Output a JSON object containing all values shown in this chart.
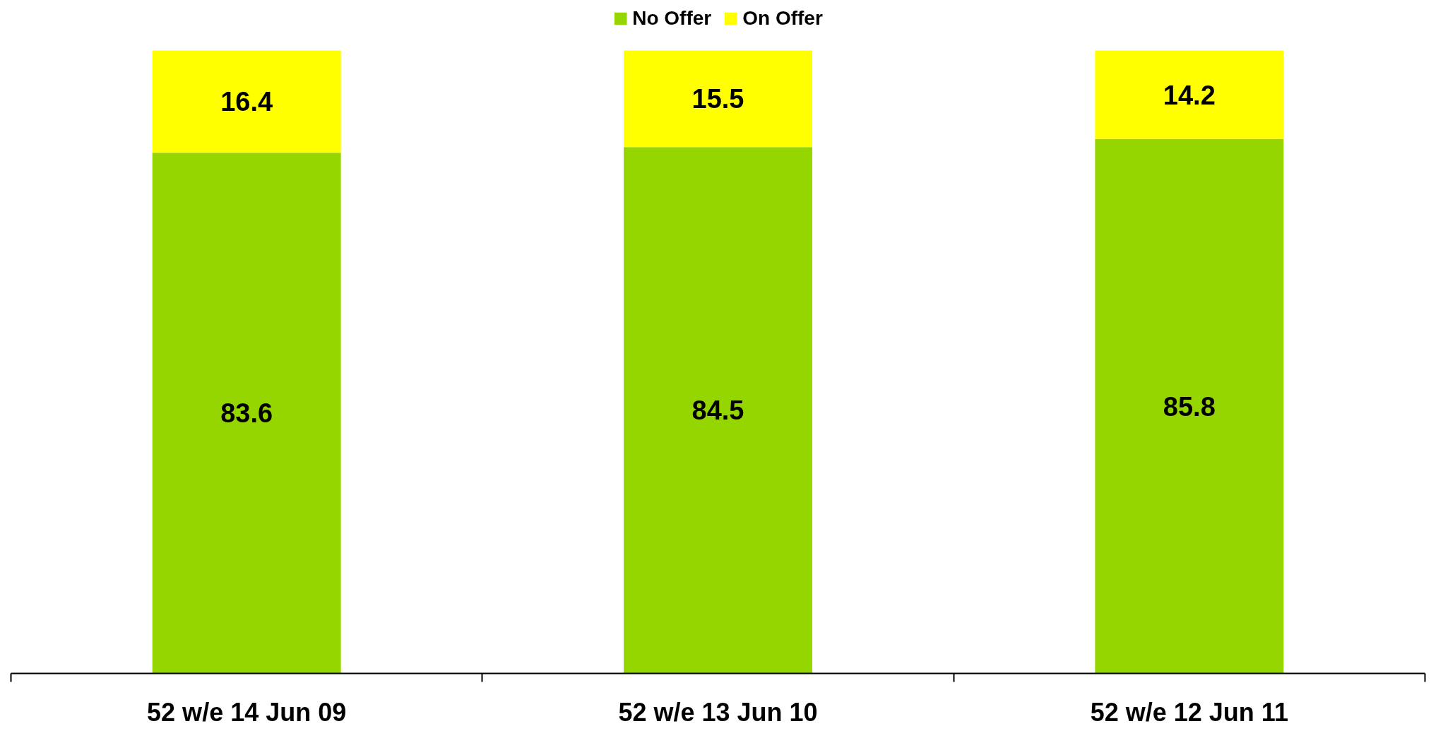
{
  "chart_data": {
    "type": "bar",
    "stacked": true,
    "categories": [
      "52 w/e 14 Jun 09",
      "52 w/e 13 Jun 10",
      "52 w/e 12 Jun 11"
    ],
    "series": [
      {
        "name": "No Offer",
        "color": "#95d600",
        "values": [
          83.6,
          84.5,
          85.8
        ]
      },
      {
        "name": "On Offer",
        "color": "#ffff00",
        "values": [
          16.4,
          15.5,
          14.2
        ]
      }
    ],
    "data_labels": true,
    "legend": "top",
    "grid": false,
    "tick_labels": "x"
  }
}
